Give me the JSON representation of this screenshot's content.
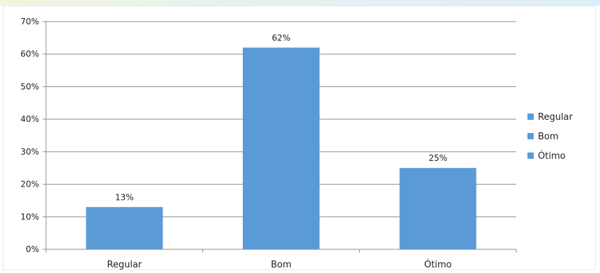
{
  "chart_data": {
    "type": "bar",
    "categories": [
      "Regular",
      "Bom",
      "Ótimo"
    ],
    "values": [
      13,
      62,
      25
    ],
    "data_labels": [
      "13%",
      "62%",
      "25%"
    ],
    "value_unit": "%",
    "ylim": [
      0,
      70
    ],
    "yticks": [
      0,
      10,
      20,
      30,
      40,
      50,
      60,
      70
    ],
    "ytick_labels": [
      "0%",
      "10%",
      "20%",
      "30%",
      "40%",
      "50%",
      "60%",
      "70%"
    ],
    "grid": true,
    "legend": {
      "placement": "right",
      "entries": [
        "Regular",
        "Bom",
        "Ótimo"
      ]
    },
    "bar_color": "#5b9bd5",
    "grid_color": "#8c8c8c",
    "title": "",
    "xlabel": "",
    "ylabel": ""
  }
}
